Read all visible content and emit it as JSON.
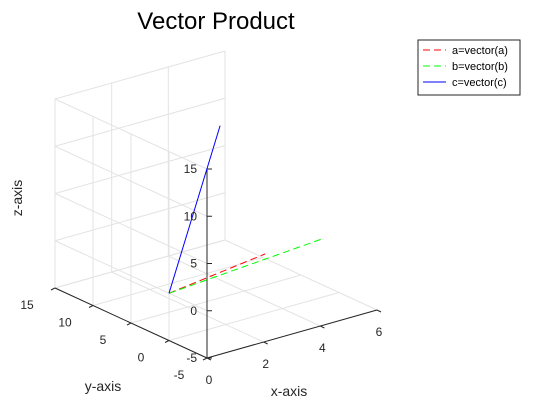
{
  "chart_data": {
    "type": "line",
    "projection": "3d",
    "title": "Vector Product",
    "xlabel": "x-axis",
    "ylabel": "y-axis",
    "zlabel": "z-axis",
    "xlim": [
      0,
      6
    ],
    "ylim": [
      -5,
      15
    ],
    "zlim": [
      -5,
      15
    ],
    "xticks": [
      0,
      2,
      4,
      6
    ],
    "yticks": [
      -5,
      0,
      5,
      10,
      15
    ],
    "zticks": [
      -5,
      0,
      5,
      10,
      15
    ],
    "grid": true,
    "legend_position": "top-right",
    "series": [
      {
        "name": "a=vector(a)",
        "style": "dashed",
        "color": "#ff0000",
        "points": [
          [
            0,
            0,
            0
          ],
          [
            4.2,
            3,
            -0.5
          ]
        ]
      },
      {
        "name": "b=vector(b)",
        "style": "dashed",
        "color": "#00ff00",
        "points": [
          [
            0,
            0,
            0
          ],
          [
            6,
            2,
            0
          ]
        ]
      },
      {
        "name": "c=vector(c)",
        "style": "solid",
        "color": "#0000ff",
        "points": [
          [
            0,
            0,
            0
          ],
          [
            1,
            -3,
            18
          ]
        ]
      }
    ]
  }
}
